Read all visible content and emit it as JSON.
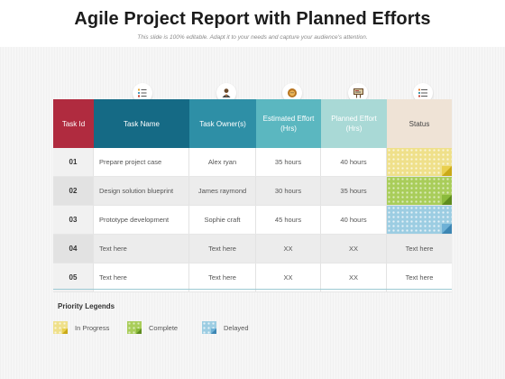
{
  "slide": {
    "title": "Agile Project Report with Planned Efforts",
    "subtitle": "This slide is 100% editable. Adapt it to your needs and capture your audience's attention."
  },
  "table": {
    "headers": [
      {
        "label": "Task Id"
      },
      {
        "label": "Task Name",
        "icon": "checklist-icon"
      },
      {
        "label": "Task Owner(s)",
        "icon": "person-icon"
      },
      {
        "label": "Estimated Effort (Hrs)",
        "icon": "lion-icon"
      },
      {
        "label": "Planned Effort (Hrs)",
        "icon": "presentation-board-icon"
      },
      {
        "label": "Status",
        "icon": "list-icon"
      }
    ],
    "rows": [
      {
        "id": "01",
        "task": "Prepare project case",
        "owner": "Alex ryan",
        "estimated": "35 hours",
        "planned": "40 hours",
        "status": "In Progress"
      },
      {
        "id": "02",
        "task": "Design solution blueprint",
        "owner": "James raymond",
        "estimated": "30 hours",
        "planned": "35 hours",
        "status": "Complete"
      },
      {
        "id": "03",
        "task": "Prototype development",
        "owner": "Sophie craft",
        "estimated": "45 hours",
        "planned": "40 hours",
        "status": "Delayed"
      },
      {
        "id": "04",
        "task": "Text here",
        "owner": "Text here",
        "estimated": "XX",
        "planned": "XX",
        "status": "Text here"
      },
      {
        "id": "05",
        "task": "Text here",
        "owner": "Text here",
        "estimated": "XX",
        "planned": "XX",
        "status": "Text here"
      }
    ]
  },
  "legend": {
    "title": "Priority Legends",
    "items": [
      {
        "label": "In Progress",
        "color": "#efe08a"
      },
      {
        "label": "Complete",
        "color": "#a9cd5a"
      },
      {
        "label": "Delayed",
        "color": "#9ccde2"
      }
    ]
  },
  "colors": {
    "task_id_header": "#b02b3f",
    "task_name_header": "#156a85",
    "owner_header": "#2e8fa6",
    "estimated_header": "#5bb7c0",
    "planned_header": "#a9d9d6",
    "status_header": "#efe3d6"
  }
}
